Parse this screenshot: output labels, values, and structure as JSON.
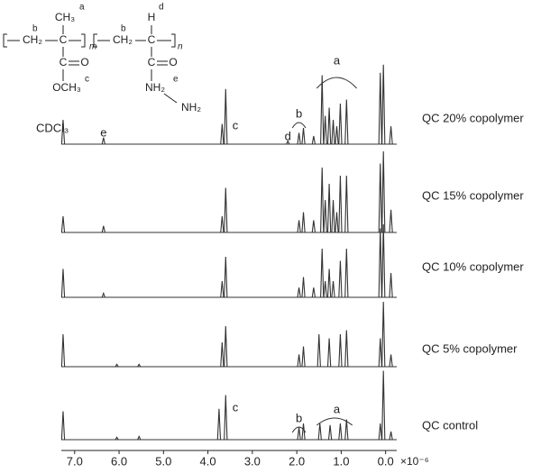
{
  "chart_data": {
    "type": "spectrum-stack",
    "x_unit": "×10⁻⁶",
    "xlim": [
      7.3,
      -0.25
    ],
    "xticks": [
      {
        "value": 7,
        "label": "7.0"
      },
      {
        "value": 6,
        "label": "6.0"
      },
      {
        "value": 5,
        "label": "5.0"
      },
      {
        "value": 4,
        "label": "4.0"
      },
      {
        "value": 3,
        "label": "3.0"
      },
      {
        "value": 2,
        "label": "2.0"
      },
      {
        "value": 1,
        "label": "1.0"
      },
      {
        "value": 0,
        "label": "0.0"
      }
    ],
    "series": [
      {
        "name": "QC 20% copolymer",
        "color": "#333333",
        "x": [
          7.26,
          6.35,
          3.68,
          3.6,
          2.2,
          1.95,
          1.85,
          1.62,
          1.43,
          1.36,
          1.27,
          1.18,
          1.1,
          1.02,
          0.88,
          0.12,
          0.05,
          -0.12
        ],
        "values": [
          30,
          8,
          25,
          68,
          4,
          14,
          20,
          10,
          85,
          35,
          45,
          30,
          22,
          50,
          55,
          88,
          98,
          22
        ]
      },
      {
        "name": "QC 15% copolymer",
        "color": "#333333",
        "x": [
          7.26,
          6.35,
          3.68,
          3.6,
          1.95,
          1.85,
          1.62,
          1.43,
          1.36,
          1.27,
          1.18,
          1.1,
          1.02,
          0.88,
          0.12,
          0.05,
          -0.12
        ],
        "values": [
          20,
          8,
          20,
          55,
          15,
          25,
          15,
          80,
          40,
          60,
          40,
          25,
          70,
          70,
          85,
          100,
          28
        ]
      },
      {
        "name": "QC 10% copolymer",
        "color": "#333333",
        "x": [
          7.26,
          6.35,
          3.68,
          3.6,
          1.95,
          1.85,
          1.62,
          1.43,
          1.36,
          1.27,
          1.18,
          1.02,
          0.88,
          0.12,
          0.05,
          -0.12
        ],
        "values": [
          35,
          5,
          20,
          50,
          12,
          25,
          12,
          60,
          20,
          35,
          20,
          45,
          60,
          85,
          90,
          30
        ]
      },
      {
        "name": "QC 5% copolymer",
        "color": "#333333",
        "x": [
          7.26,
          6.05,
          5.55,
          3.68,
          3.6,
          1.95,
          1.85,
          1.5,
          1.27,
          1.02,
          0.88,
          0.12,
          0.05,
          -0.12
        ],
        "values": [
          40,
          3,
          3,
          30,
          50,
          15,
          25,
          40,
          35,
          40,
          45,
          35,
          80,
          15
        ]
      },
      {
        "name": "QC control",
        "color": "#333333",
        "x": [
          7.26,
          6.05,
          5.55,
          3.75,
          3.6,
          1.95,
          1.85,
          1.48,
          1.25,
          1.02,
          0.88,
          0.12,
          0.05,
          -0.12
        ],
        "values": [
          35,
          3,
          4,
          38,
          55,
          15,
          20,
          20,
          18,
          20,
          25,
          20,
          85,
          10
        ]
      }
    ],
    "annotations": [
      "CDCl₃",
      "e",
      "c",
      "d",
      "b",
      "a",
      "c",
      "b",
      "a"
    ],
    "structure_labels": [
      "CH₂",
      "C",
      "CH₃",
      "C",
      "O",
      "OCH₃",
      "CH₂",
      "C",
      "H",
      "C",
      "O",
      "NH₂",
      "NH₂",
      "m",
      "n",
      "a",
      "b",
      "c",
      "b",
      "d",
      "e"
    ]
  }
}
